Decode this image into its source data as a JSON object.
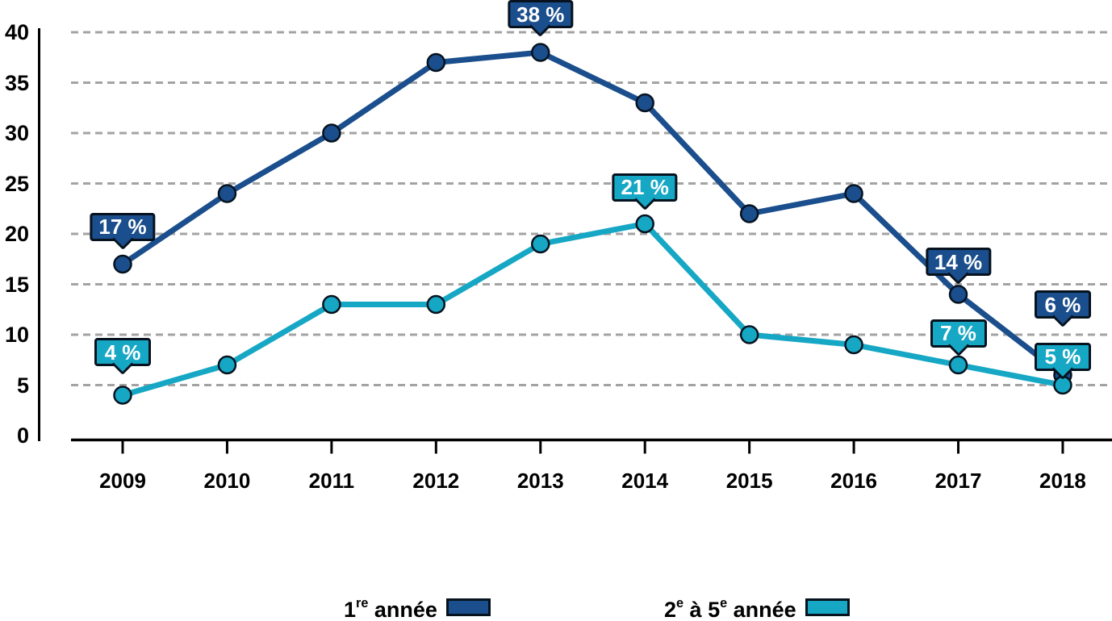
{
  "chart_data": {
    "type": "line",
    "categories": [
      "2009",
      "2010",
      "2011",
      "2012",
      "2013",
      "2014",
      "2015",
      "2016",
      "2017",
      "2018"
    ],
    "series": [
      {
        "name": "1re année",
        "color": "#1A4E8C",
        "values": [
          17,
          24,
          30,
          37,
          38,
          33,
          22,
          24,
          14,
          6
        ]
      },
      {
        "name": "2e à 5e année",
        "color": "#16A7C5",
        "values": [
          4,
          7,
          13,
          13,
          19,
          21,
          10,
          9,
          7,
          5
        ]
      }
    ],
    "value_suffix": " %",
    "ylim": [
      0,
      40
    ],
    "yticks": [
      0,
      5,
      10,
      15,
      20,
      25,
      30,
      35,
      40
    ],
    "grid": "horizontal-dashed",
    "legend_position": "bottom",
    "annotations": [
      {
        "series": 0,
        "category": "2009",
        "label": "17 %",
        "gap": 29
      },
      {
        "series": 0,
        "category": "2013",
        "label": "38 %",
        "gap": 30
      },
      {
        "series": 0,
        "category": "2017",
        "label": "14 %",
        "gap": 23
      },
      {
        "series": 0,
        "category": "2018",
        "label": "6 %",
        "gap": 70
      },
      {
        "series": 1,
        "category": "2009",
        "label": "4 %",
        "gap": 36
      },
      {
        "series": 1,
        "category": "2014",
        "label": "21 %",
        "gap": 28
      },
      {
        "series": 1,
        "category": "2017",
        "label": "7 %",
        "gap": 22
      },
      {
        "series": 1,
        "category": "2018",
        "label": "5 %",
        "gap": 18
      }
    ]
  },
  "legend": {
    "items": [
      {
        "label": "1re année",
        "parts": [
          [
            "t",
            "1"
          ],
          [
            "sup",
            "re"
          ],
          [
            "t",
            " année"
          ]
        ],
        "color": "#1A4E8C"
      },
      {
        "label": "2e à 5e année",
        "parts": [
          [
            "t",
            "2"
          ],
          [
            "sup",
            "e"
          ],
          [
            "t",
            " à 5"
          ],
          [
            "sup",
            "e"
          ],
          [
            "t",
            " année"
          ]
        ],
        "color": "#16A7C5"
      }
    ]
  },
  "colors": {
    "background": "#FFFFFF",
    "gridline": "#A3A3A3",
    "axis": "#000000",
    "marker_outline": "#06121E",
    "callout_text": "#FFFFFF",
    "series1": "#1A4E8C",
    "series2": "#16A7C5"
  }
}
